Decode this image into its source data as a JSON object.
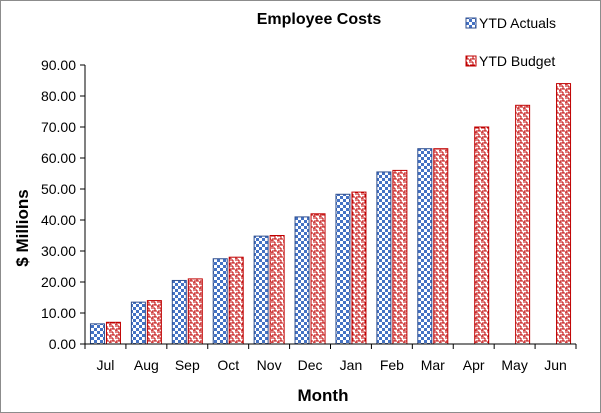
{
  "chart_data": {
    "type": "bar",
    "title": "Employee Costs",
    "xlabel": "Month",
    "ylabel": "$ Millions",
    "ylim": [
      0,
      90
    ],
    "yticks": [
      "0.00",
      "10.00",
      "20.00",
      "30.00",
      "40.00",
      "50.00",
      "60.00",
      "70.00",
      "80.00",
      "90.00"
    ],
    "grid": false,
    "legend_position": "top-right",
    "categories": [
      "Jul",
      "Aug",
      "Sep",
      "Oct",
      "Nov",
      "Dec",
      "Jan",
      "Feb",
      "Mar",
      "Apr",
      "May",
      "Jun"
    ],
    "series": [
      {
        "name": "YTD Actuals",
        "color": "#4472c4",
        "pattern": "checkerboard",
        "values": [
          6.5,
          13.5,
          20.5,
          27.5,
          34.8,
          41.0,
          48.3,
          55.5,
          63.0,
          null,
          null,
          null
        ]
      },
      {
        "name": "YTD Budget",
        "color": "#c00000",
        "pattern": "maze",
        "values": [
          7.0,
          14.0,
          21.0,
          28.0,
          35.0,
          42.0,
          49.0,
          56.0,
          63.0,
          70.0,
          77.0,
          84.0
        ]
      }
    ]
  }
}
